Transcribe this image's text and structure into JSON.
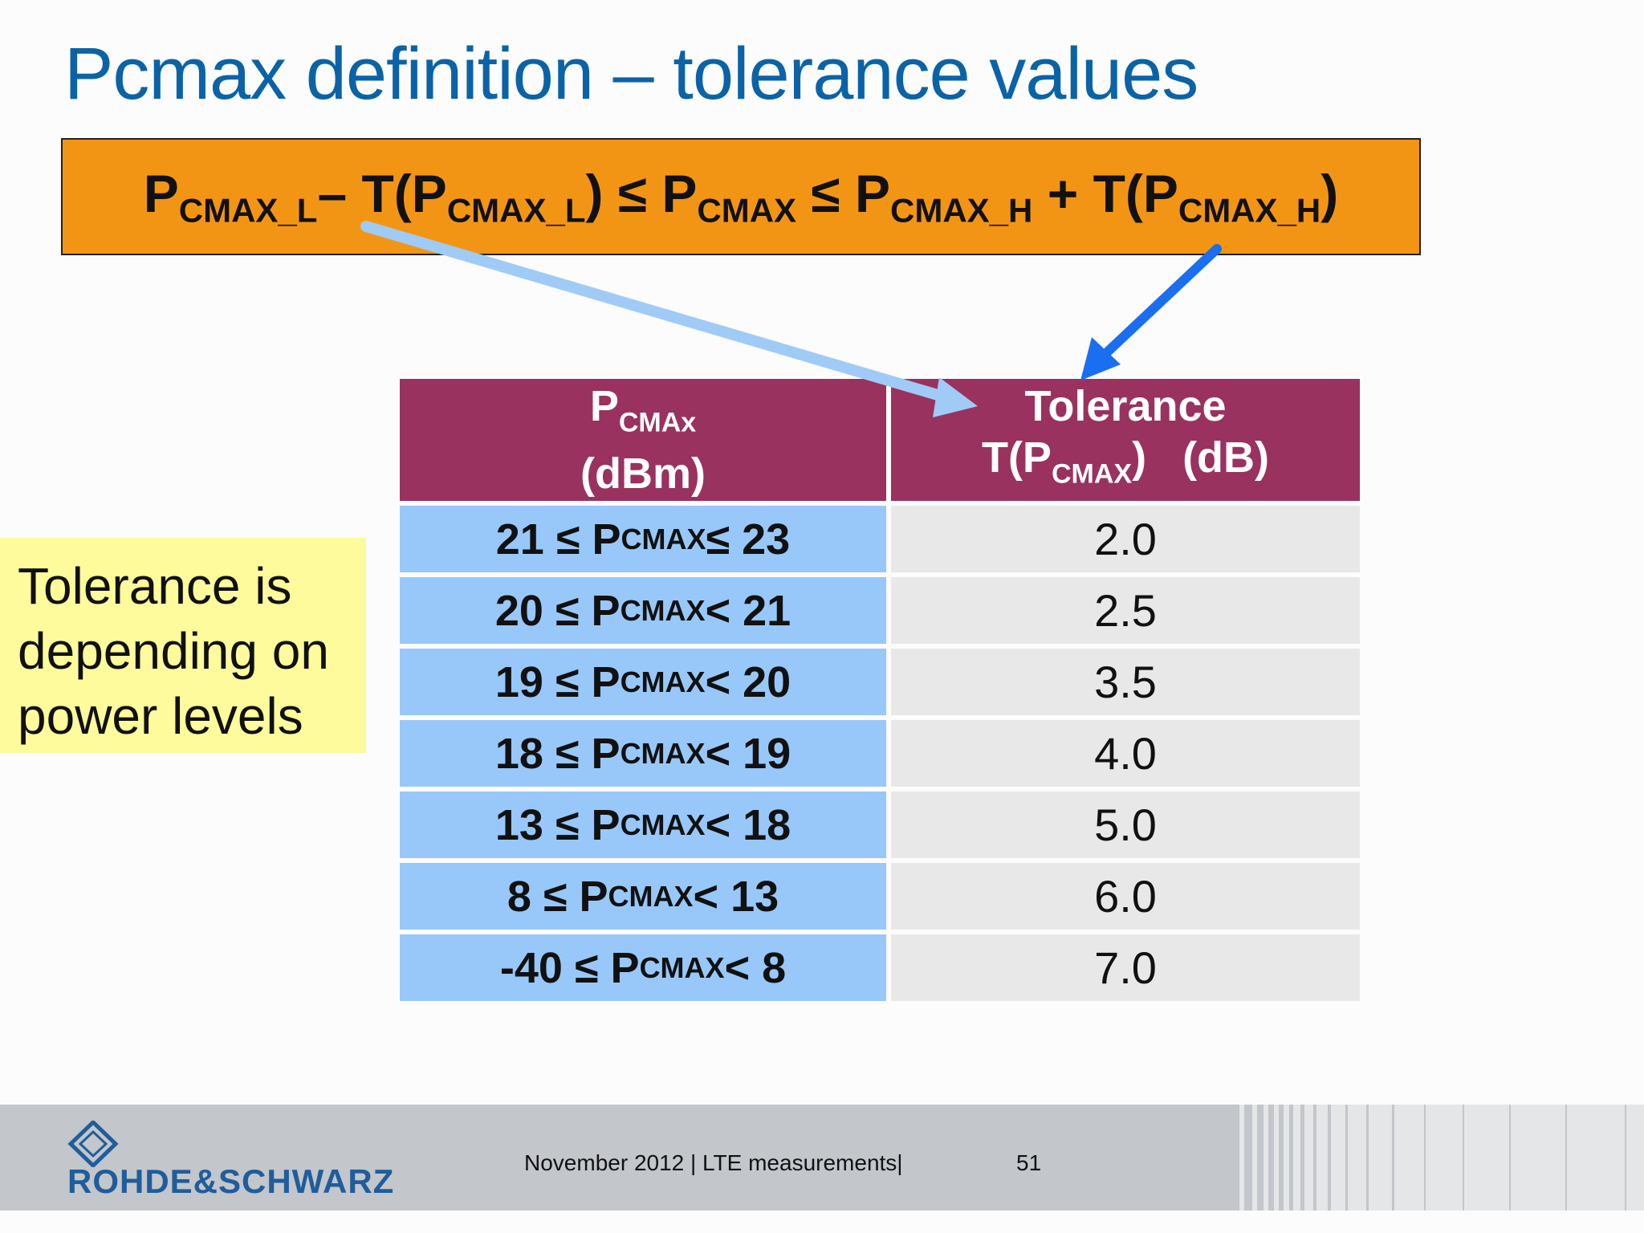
{
  "slide": {
    "title": "Pcmax definition – tolerance values",
    "formula": {
      "p1": "P",
      "s1": "CMAX_L",
      "op1": "– T(P",
      "s2": "CMAX_L",
      "op2": ") ≤ P",
      "s3": "CMAX",
      "op3": " ≤ P",
      "s4": "CMAX_H",
      "op4": " + T(P",
      "s5": "CMAX_H",
      "op5": ")"
    },
    "note": {
      "line1": "Tolerance is",
      "line2": "depending on",
      "line3": "power levels"
    },
    "table": {
      "header1": {
        "p": "P",
        "sub": "CMAx",
        "unit": "(dBm)"
      },
      "header2": {
        "title": "Tolerance",
        "t": "T(P",
        "sub": "CMAX",
        "close": ")",
        "unit": "(dB)"
      },
      "rows": [
        {
          "pre": "21 ≤ P",
          "sub": "CMAX",
          "post": " ≤ 23",
          "tol": "2.0"
        },
        {
          "pre": "20 ≤ P",
          "sub": "CMAX",
          "post": " < 21",
          "tol": "2.5"
        },
        {
          "pre": "19 ≤ P",
          "sub": "CMAX",
          "post": " < 20",
          "tol": "3.5"
        },
        {
          "pre": "18 ≤ P",
          "sub": "CMAX",
          "post": " < 19",
          "tol": "4.0"
        },
        {
          "pre": "13 ≤ P",
          "sub": "CMAX",
          "post": " < 18",
          "tol": "5.0"
        },
        {
          "pre": "8 ≤ P",
          "sub": "CMAX",
          "post": " < 13",
          "tol": "6.0"
        },
        {
          "pre": "-40 ≤ P",
          "sub": "CMAX",
          "post": " < 8",
          "tol": "7.0"
        }
      ]
    },
    "footer": {
      "logo_text": "ROHDE&SCHWARZ",
      "text": "November 2012 |  LTE measurements|",
      "page": "51"
    },
    "colors": {
      "title": "#0b63a7",
      "formula_bg": "#f39514",
      "header_bg": "#99325f",
      "row_bg": "#98c8f9",
      "tol_bg": "#e8e8e8",
      "note_bg": "#fdfb9c",
      "arrow_light": "#9fcbf6",
      "arrow_dark": "#1a6ff0"
    }
  }
}
